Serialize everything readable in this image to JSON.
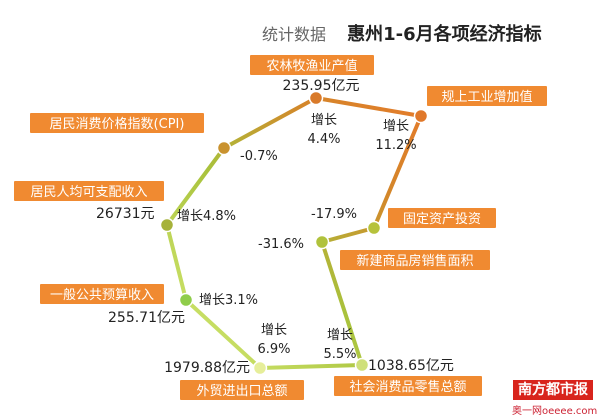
{
  "header": {
    "subtitle": "统计数据",
    "title": "惠州1-6月各项经济指标"
  },
  "logo": {
    "text": "南方都市报",
    "site": "奥一网oeeee.com"
  },
  "colors": {
    "tag": "#f08a31",
    "tag_text": "#ffffff",
    "text": "#222222",
    "path_green": "#a9d24a",
    "path_orange": "#e0882a",
    "logo": "#d8241c"
  },
  "chart_data": {
    "type": "infographic-path",
    "title": "惠州1-6月各项经济指标",
    "indicators": [
      {
        "name": "农林牧渔业产值",
        "value": "235.95亿元",
        "growth": "增长4.4%"
      },
      {
        "name": "规上工业增加值",
        "value": "",
        "growth": "增长11.2%"
      },
      {
        "name": "固定资产投资",
        "value": "",
        "growth": "-17.9%"
      },
      {
        "name": "新建商品房销售面积",
        "value": "",
        "growth": "-31.6%"
      },
      {
        "name": "社会消费品零售总额",
        "value": "1038.65亿元",
        "growth": "增长5.5%"
      },
      {
        "name": "外贸进出口总额",
        "value": "1979.88亿元",
        "growth": "增长6.9%"
      },
      {
        "name": "一般公共预算收入",
        "value": "255.71亿元",
        "growth": "增长3.1%"
      },
      {
        "name": "居民人均可支配收入",
        "value": "26731元",
        "growth": "增长4.8%"
      },
      {
        "name": "居民消费价格指数(CPI)",
        "value": "",
        "growth": "-0.7%"
      }
    ]
  }
}
